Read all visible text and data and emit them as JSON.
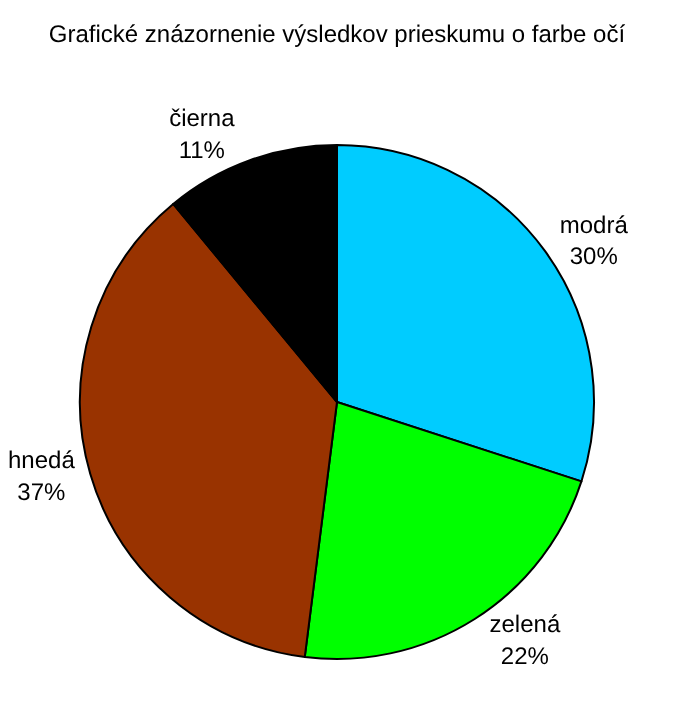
{
  "chart_data": {
    "type": "pie",
    "title": "Grafické znázornenie výsledkov prieskumu o farbe očí",
    "categories": [
      "modrá",
      "zelená",
      "hnedá",
      "čierna"
    ],
    "values": [
      30,
      22,
      37,
      11
    ],
    "value_labels": [
      "30%",
      "22%",
      "37%",
      "11%"
    ],
    "colors": [
      "#00ccff",
      "#00ff00",
      "#993300",
      "#000000"
    ],
    "legend": false
  }
}
